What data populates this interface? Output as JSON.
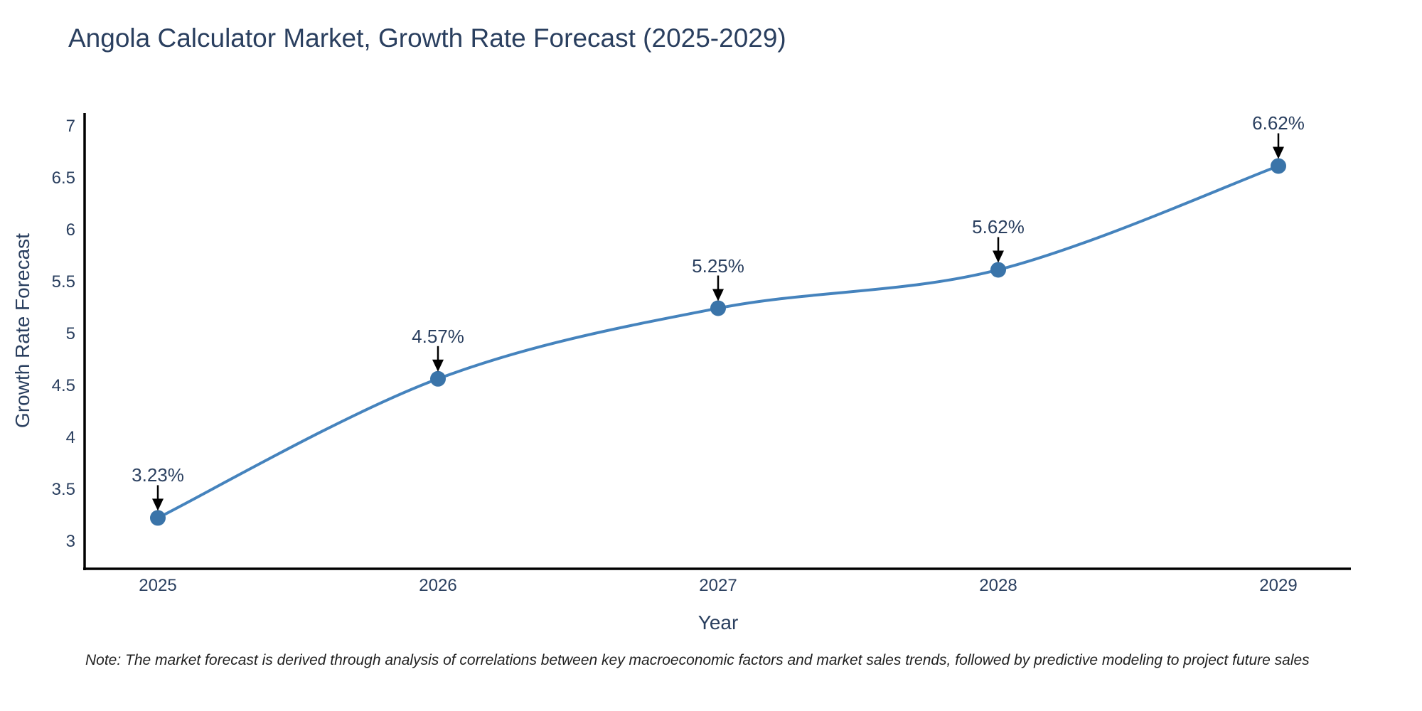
{
  "page": {
    "background": "#ffffff"
  },
  "title": {
    "text": "Angola Calculator Market, Growth Rate Forecast (2025-2029)",
    "color": "#2a3f5f"
  },
  "note": {
    "text": "Note: The market forecast is derived through analysis of correlations between key macroeconomic factors and market sales trends, followed by predictive modeling to project future sales"
  },
  "chart_data": {
    "type": "line",
    "title": "Angola Calculator Market, Growth Rate Forecast (2025-2029)",
    "xlabel": "Year",
    "ylabel": "Growth Rate Forecast",
    "x": [
      2025,
      2026,
      2027,
      2028,
      2029
    ],
    "series": [
      {
        "name": "Growth Rate Forecast",
        "values": [
          3.23,
          4.57,
          5.25,
          5.62,
          6.62
        ],
        "point_labels": [
          "3.23%",
          "4.57%",
          "5.25%",
          "5.62%",
          "6.62%"
        ]
      }
    ],
    "yticks": [
      3,
      3.5,
      4,
      4.5,
      5,
      5.5,
      6,
      6.5,
      7
    ],
    "ylim": [
      2.74,
      7.13
    ],
    "xlim": [
      2024.74,
      2029.26
    ],
    "line_shape": "spline",
    "grid": false,
    "legend": "none",
    "annotation_style": "value label above point with downward black arrow",
    "colors": {
      "line": "#4583bd",
      "marker": "#3a74a9",
      "axis": "#000000",
      "text": "#2a3f5f",
      "arrow": "#000000"
    }
  }
}
